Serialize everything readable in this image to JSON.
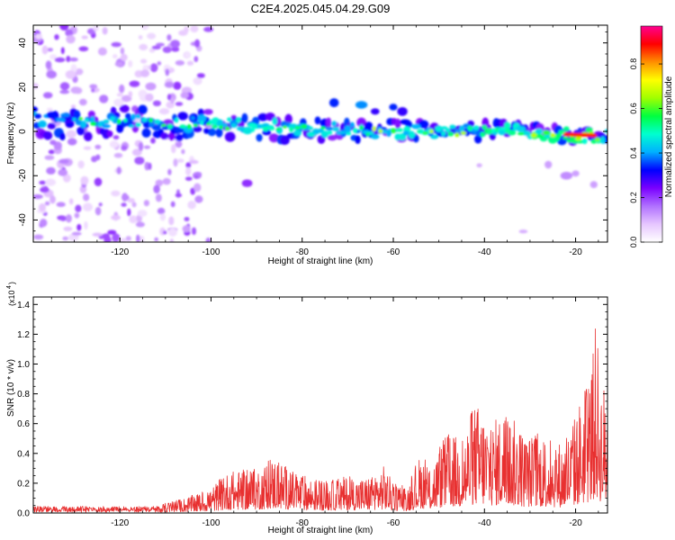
{
  "title": "C2E4.2025.045.04.29.G09",
  "chart_data": [
    {
      "type": "heatmap",
      "xlabel": "Height of straight line (km)",
      "ylabel": "Frequency (Hz)",
      "xlim": [
        -139,
        -13
      ],
      "ylim": [
        -50,
        48
      ],
      "xticks": [
        -120,
        -100,
        -80,
        -60,
        -40,
        -20
      ],
      "yticks": [
        -40,
        -20,
        0,
        20,
        40
      ],
      "colorbar": {
        "label": "Normalized spectral amplitude",
        "range": [
          0.0,
          0.97
        ],
        "ticks": [
          0.0,
          0.2,
          0.4,
          0.6,
          0.8
        ],
        "tick_labels": [
          "0.0",
          "0.2",
          "0.4",
          "0.6",
          "0.8"
        ],
        "colors": [
          "#ffffff",
          "#e6c6ff",
          "#b070ff",
          "#7a00ff",
          "#0000ff",
          "#00b0ff",
          "#00ffd0",
          "#00ff40",
          "#a0ff00",
          "#ffff00",
          "#ff9000",
          "#ff0000",
          "#ff0090"
        ]
      },
      "band_center_hz": {
        "x": [
          -139,
          -120,
          -100,
          -80,
          -60,
          -40,
          -30,
          -20,
          -13
        ],
        "y": [
          5,
          4,
          3,
          1,
          0,
          0,
          -0.5,
          -1.5,
          -2
        ]
      }
    },
    {
      "type": "line",
      "xlabel": "Height of straight line (km)",
      "ylabel": "SNR (10 * v/v)",
      "y_multiplier": "(x10",
      "y_multiplier_exp": "4",
      "xlim": [
        -139,
        -13
      ],
      "ylim": [
        0,
        1.45
      ],
      "xticks": [
        -120,
        -100,
        -80,
        -60,
        -40,
        -20
      ],
      "yticks": [
        0.0,
        0.2,
        0.4,
        0.6,
        0.8,
        1.0,
        1.2,
        1.4
      ],
      "ytick_labels": [
        "0.0",
        "0.2",
        "0.4",
        "0.6",
        "0.8",
        "1.0",
        "1.2",
        "1.4"
      ],
      "color": "#e83030",
      "envelope": {
        "x": [
          -139,
          -125,
          -112,
          -106,
          -101,
          -96,
          -90,
          -86,
          -82,
          -78,
          -74,
          -70,
          -66,
          -62,
          -60,
          -57,
          -54,
          -52,
          -48,
          -45,
          -42,
          -38,
          -36,
          -34,
          -31,
          -28,
          -25,
          -23,
          -21,
          -19,
          -17,
          -15.5,
          -14.5,
          -13
        ],
        "y": [
          0.03,
          0.03,
          0.05,
          0.1,
          0.15,
          0.28,
          0.3,
          0.38,
          0.28,
          0.24,
          0.22,
          0.25,
          0.24,
          0.32,
          0.2,
          0.18,
          0.4,
          0.32,
          0.55,
          0.5,
          0.75,
          0.62,
          0.7,
          0.65,
          0.52,
          0.55,
          0.5,
          0.48,
          0.58,
          0.78,
          0.9,
          1.3,
          0.95,
          0.8
        ]
      }
    }
  ]
}
